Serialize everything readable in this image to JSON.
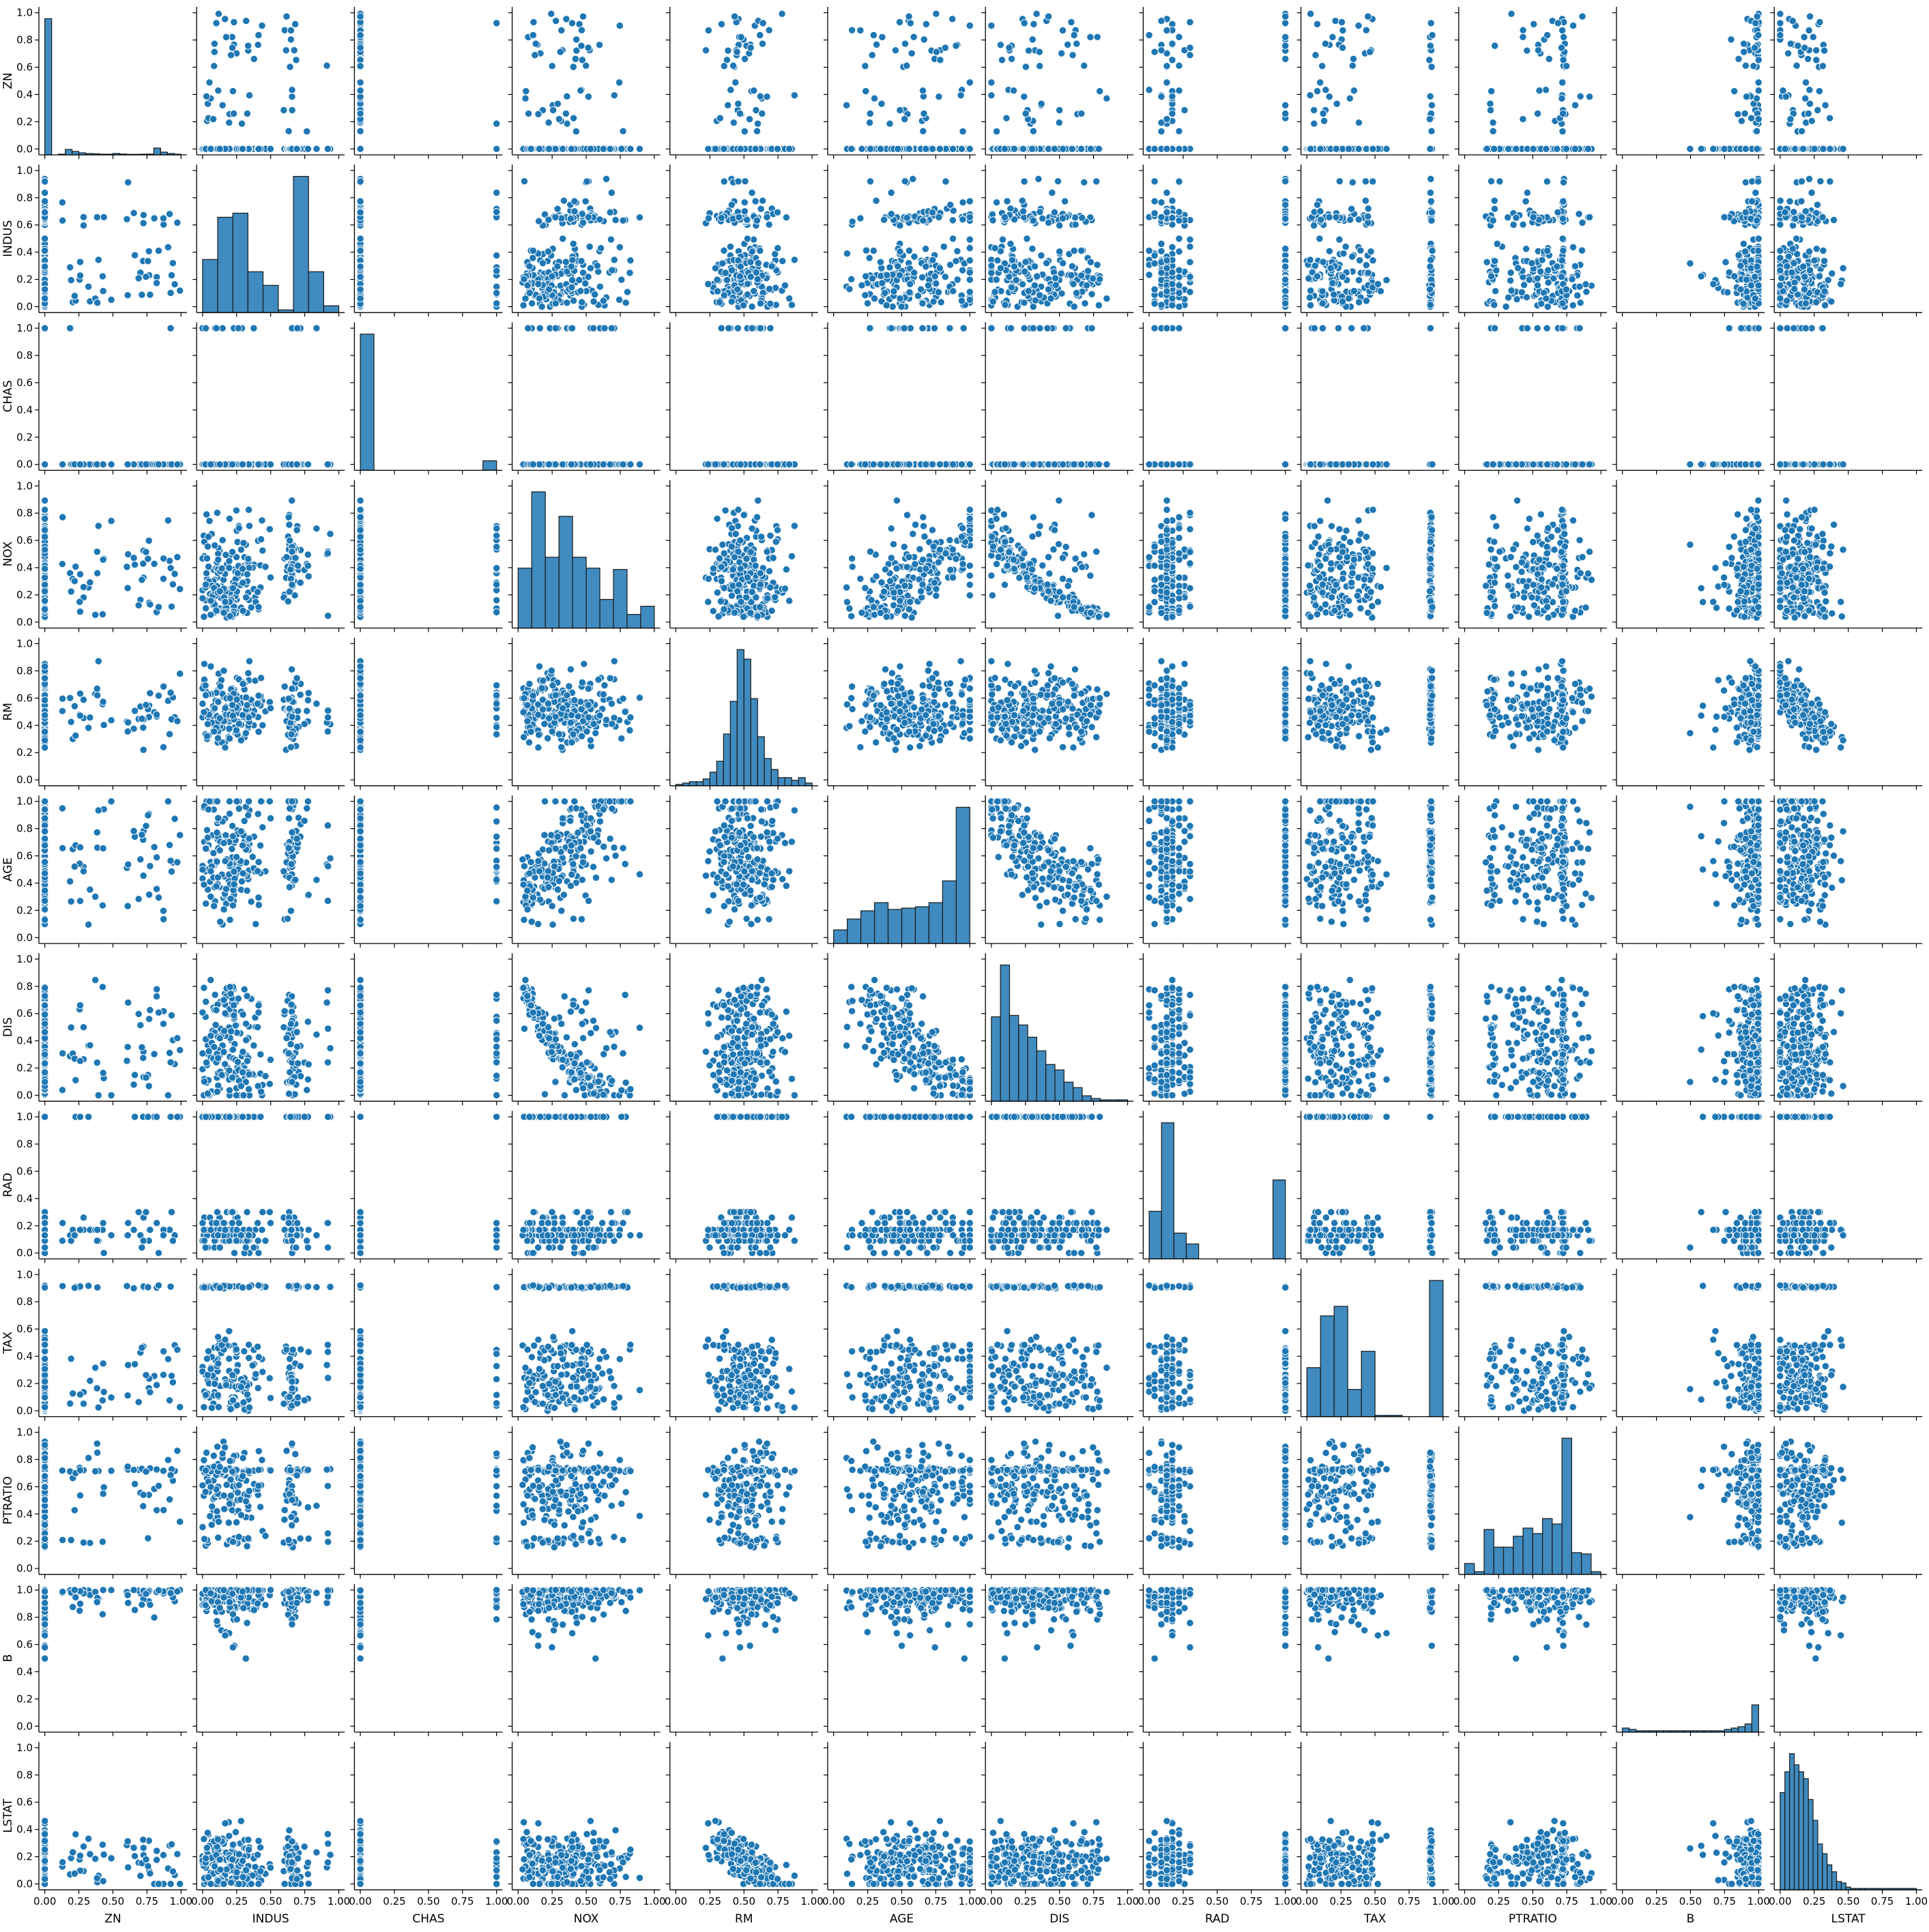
{
  "chart_data": {
    "type": "scatter",
    "subtype": "pairplot",
    "title": "",
    "variables": [
      "ZN",
      "INDUS",
      "CHAS",
      "NOX",
      "RM",
      "AGE",
      "DIS",
      "RAD",
      "TAX",
      "PTRATIO",
      "B",
      "LSTAT"
    ],
    "axis_range": [
      0.0,
      1.0
    ],
    "ticks": [
      0.0,
      0.2,
      0.4,
      0.6,
      0.8,
      1.0
    ],
    "x_ticks": [
      0.0,
      0.25,
      0.5,
      0.75,
      1.0
    ],
    "tick_labels_y": [
      "0.0",
      "0.2",
      "0.4",
      "0.6",
      "0.8",
      "1.0"
    ],
    "tick_labels_x": [
      "0.00",
      "0.25",
      "0.50",
      "0.75",
      "1.00"
    ],
    "x_labels_show": [
      "ZN",
      "INDUS",
      "CHAS",
      "NOX",
      "RM",
      "AGE",
      "DIS",
      "RAD",
      "TAX",
      "PTRATIO",
      "B",
      "LSTAT"
    ],
    "y_labels_show": [
      "ZN",
      "INDUS",
      "CHAS",
      "NOX",
      "RM",
      "AGE",
      "DIS",
      "RAD",
      "TAX",
      "PTRATIO",
      "B",
      "LSTAT"
    ],
    "grid": false,
    "legend": "none",
    "colors": {
      "marker": "#1f77b4",
      "marker_edge": "#ffffff",
      "bar": "#1f77b4",
      "bar_edge": "#1a1a1a",
      "axis": "#000000"
    },
    "diagonal_histograms": {
      "ZN": {
        "bins": [
          0,
          0.05,
          0.1,
          0.15,
          0.2,
          0.25,
          0.3,
          0.35,
          0.4,
          0.45,
          0.5,
          0.55,
          0.6,
          0.65,
          0.7,
          0.75,
          0.8,
          0.85,
          0.9,
          0.95,
          1.0
        ],
        "counts": [
          1.0,
          0.0,
          0.005,
          0.04,
          0.025,
          0.015,
          0.01,
          0.008,
          0.005,
          0.005,
          0.01,
          0.006,
          0.004,
          0.004,
          0.005,
          0.006,
          0.05,
          0.02,
          0.01,
          0.005
        ]
      },
      "INDUS": {
        "bins": [
          0,
          0.111,
          0.222,
          0.333,
          0.444,
          0.556,
          0.667,
          0.778,
          0.889,
          1.0
        ],
        "counts": [
          0.39,
          0.7,
          0.73,
          0.3,
          0.2,
          0.02,
          1.0,
          0.3,
          0.05
        ]
      },
      "CHAS": {
        "bins": [
          0,
          0.1,
          0.2,
          0.3,
          0.4,
          0.5,
          0.6,
          0.7,
          0.8,
          0.9,
          1.0
        ],
        "counts": [
          1.0,
          0,
          0,
          0,
          0,
          0,
          0,
          0,
          0,
          0.07
        ]
      },
      "NOX": {
        "bins": [
          0,
          0.1,
          0.2,
          0.3,
          0.4,
          0.5,
          0.6,
          0.7,
          0.8,
          0.9,
          1.0
        ],
        "counts": [
          0.44,
          1.0,
          0.52,
          0.82,
          0.52,
          0.44,
          0.21,
          0.43,
          0.1,
          0.16
        ]
      },
      "RM": {
        "bins": [
          0,
          0.05,
          0.1,
          0.15,
          0.2,
          0.25,
          0.3,
          0.35,
          0.4,
          0.45,
          0.5,
          0.55,
          0.6,
          0.65,
          0.7,
          0.75,
          0.8,
          0.85,
          0.9,
          0.95,
          1.0
        ],
        "counts": [
          0.01,
          0.02,
          0.03,
          0.03,
          0.05,
          0.1,
          0.18,
          0.38,
          0.62,
          1.0,
          0.93,
          0.64,
          0.36,
          0.2,
          0.12,
          0.06,
          0.06,
          0.04,
          0.06,
          0.02
        ]
      },
      "AGE": {
        "bins": [
          0,
          0.1,
          0.2,
          0.3,
          0.4,
          0.5,
          0.6,
          0.7,
          0.8,
          0.9,
          1.0
        ],
        "counts": [
          0.1,
          0.18,
          0.24,
          0.3,
          0.25,
          0.26,
          0.27,
          0.3,
          0.46,
          1.0
        ]
      },
      "DIS": {
        "bins": [
          0,
          0.0667,
          0.1333,
          0.2,
          0.2667,
          0.3333,
          0.4,
          0.4667,
          0.5333,
          0.6,
          0.6667,
          0.7333,
          0.8,
          0.8667,
          0.9333,
          1.0
        ],
        "counts": [
          0.62,
          1.0,
          0.63,
          0.56,
          0.47,
          0.37,
          0.27,
          0.23,
          0.14,
          0.1,
          0.04,
          0.02,
          0.01,
          0.01,
          0.01
        ]
      },
      "RAD": {
        "bins": [
          0,
          0.0909,
          0.1818,
          0.2727,
          0.3636,
          0.4545,
          0.5455,
          0.6364,
          0.7273,
          0.8182,
          0.9091,
          1.0
        ],
        "counts": [
          0.35,
          1.0,
          0.19,
          0.11,
          0,
          0,
          0,
          0,
          0,
          0,
          0.58
        ]
      },
      "TAX": {
        "bins": [
          0,
          0.1,
          0.2,
          0.3,
          0.4,
          0.5,
          0.6,
          0.7,
          0.8,
          0.9,
          1.0
        ],
        "counts": [
          0.36,
          0.74,
          0.81,
          0.2,
          0.48,
          0.01,
          0.01,
          0,
          0,
          1.0
        ]
      },
      "PTRATIO": {
        "bins": [
          0,
          0.0714,
          0.1429,
          0.2143,
          0.2857,
          0.3571,
          0.4286,
          0.5,
          0.5714,
          0.6429,
          0.7143,
          0.7857,
          0.8571,
          0.9286,
          1.0
        ],
        "counts": [
          0.08,
          0.02,
          0.33,
          0.2,
          0.2,
          0.28,
          0.34,
          0.3,
          0.41,
          0.37,
          1.0,
          0.16,
          0.15,
          0.02
        ]
      },
      "B": {
        "bins": [
          0,
          0.05,
          0.1,
          0.15,
          0.2,
          0.25,
          0.3,
          0.35,
          0.4,
          0.45,
          0.5,
          0.55,
          0.6,
          0.65,
          0.7,
          0.75,
          0.8,
          0.85,
          0.9,
          0.95,
          1.0
        ],
        "counts": [
          0.03,
          0.02,
          0.01,
          0.01,
          0.01,
          0.01,
          0.01,
          0.01,
          0.01,
          0.01,
          0.01,
          0.01,
          0.01,
          0.01,
          0.01,
          0.02,
          0.03,
          0.04,
          0.06,
          0.2,
          1.0
        ]
      },
      "LSTAT": {
        "bins": [
          0,
          0.0345,
          0.069,
          0.1034,
          0.1379,
          0.1724,
          0.2069,
          0.2414,
          0.2759,
          0.3103,
          0.3448,
          0.3793,
          0.4138,
          0.4483,
          0.4828,
          0.5172,
          0.5517,
          0.5862,
          0.6207,
          1.0
        ],
        "counts": [
          0.7,
          0.85,
          0.98,
          0.9,
          0.85,
          0.8,
          0.65,
          0.5,
          0.33,
          0.26,
          0.18,
          0.13,
          0.06,
          0.05,
          0.02,
          0.01,
          0.01,
          0.01,
          0.01
        ]
      }
    },
    "variable_profiles": {
      "ZN": {
        "kind": "zeroheavy",
        "zero": 0.74,
        "hi": [
          0.125,
          1.0
        ]
      },
      "INDUS": {
        "kind": "clusters",
        "centers": [
          [
            0.05,
            0.05
          ],
          [
            0.15,
            0.07
          ],
          [
            0.25,
            0.08
          ],
          [
            0.35,
            0.07
          ],
          [
            0.45,
            0.06
          ],
          [
            0.65,
            0.02
          ],
          [
            0.7,
            0.04
          ],
          [
            0.95,
            0.03
          ]
        ],
        "weights": [
          0.15,
          0.2,
          0.2,
          0.12,
          0.05,
          0.2,
          0.06,
          0.02
        ]
      },
      "CHAS": {
        "kind": "binary",
        "p1": 0.07
      },
      "NOX": {
        "kind": "skew",
        "a": 1.6,
        "b": 3.5
      },
      "RM": {
        "kind": "normal",
        "mu": 0.52,
        "sd": 0.13
      },
      "AGE": {
        "kind": "skew",
        "a": 2.0,
        "b": 0.7
      },
      "DIS": {
        "kind": "skew",
        "a": 1.2,
        "b": 4.5
      },
      "RAD": {
        "kind": "discrete",
        "levels": [
          0.0,
          0.04,
          0.09,
          0.13,
          0.17,
          0.22,
          0.26,
          0.3,
          1.0
        ],
        "probs": [
          0.04,
          0.05,
          0.12,
          0.18,
          0.16,
          0.07,
          0.04,
          0.05,
          0.26
        ]
      },
      "TAX": {
        "kind": "clusters",
        "centers": [
          [
            0.1,
            0.06
          ],
          [
            0.2,
            0.07
          ],
          [
            0.3,
            0.06
          ],
          [
            0.45,
            0.05
          ],
          [
            0.91,
            0.005
          ]
        ],
        "weights": [
          0.2,
          0.23,
          0.14,
          0.16,
          0.27
        ]
      },
      "PTRATIO": {
        "kind": "clusters",
        "centers": [
          [
            0.2,
            0.02
          ],
          [
            0.45,
            0.1
          ],
          [
            0.6,
            0.08
          ],
          [
            0.72,
            0.01
          ],
          [
            0.82,
            0.04
          ]
        ],
        "weights": [
          0.1,
          0.25,
          0.25,
          0.28,
          0.1
        ]
      },
      "B": {
        "kind": "leftskew",
        "a": 9.0,
        "b": 0.6
      },
      "LSTAT": {
        "kind": "skew",
        "a": 1.8,
        "b": 7.0
      }
    },
    "points_per_panel": 240
  }
}
